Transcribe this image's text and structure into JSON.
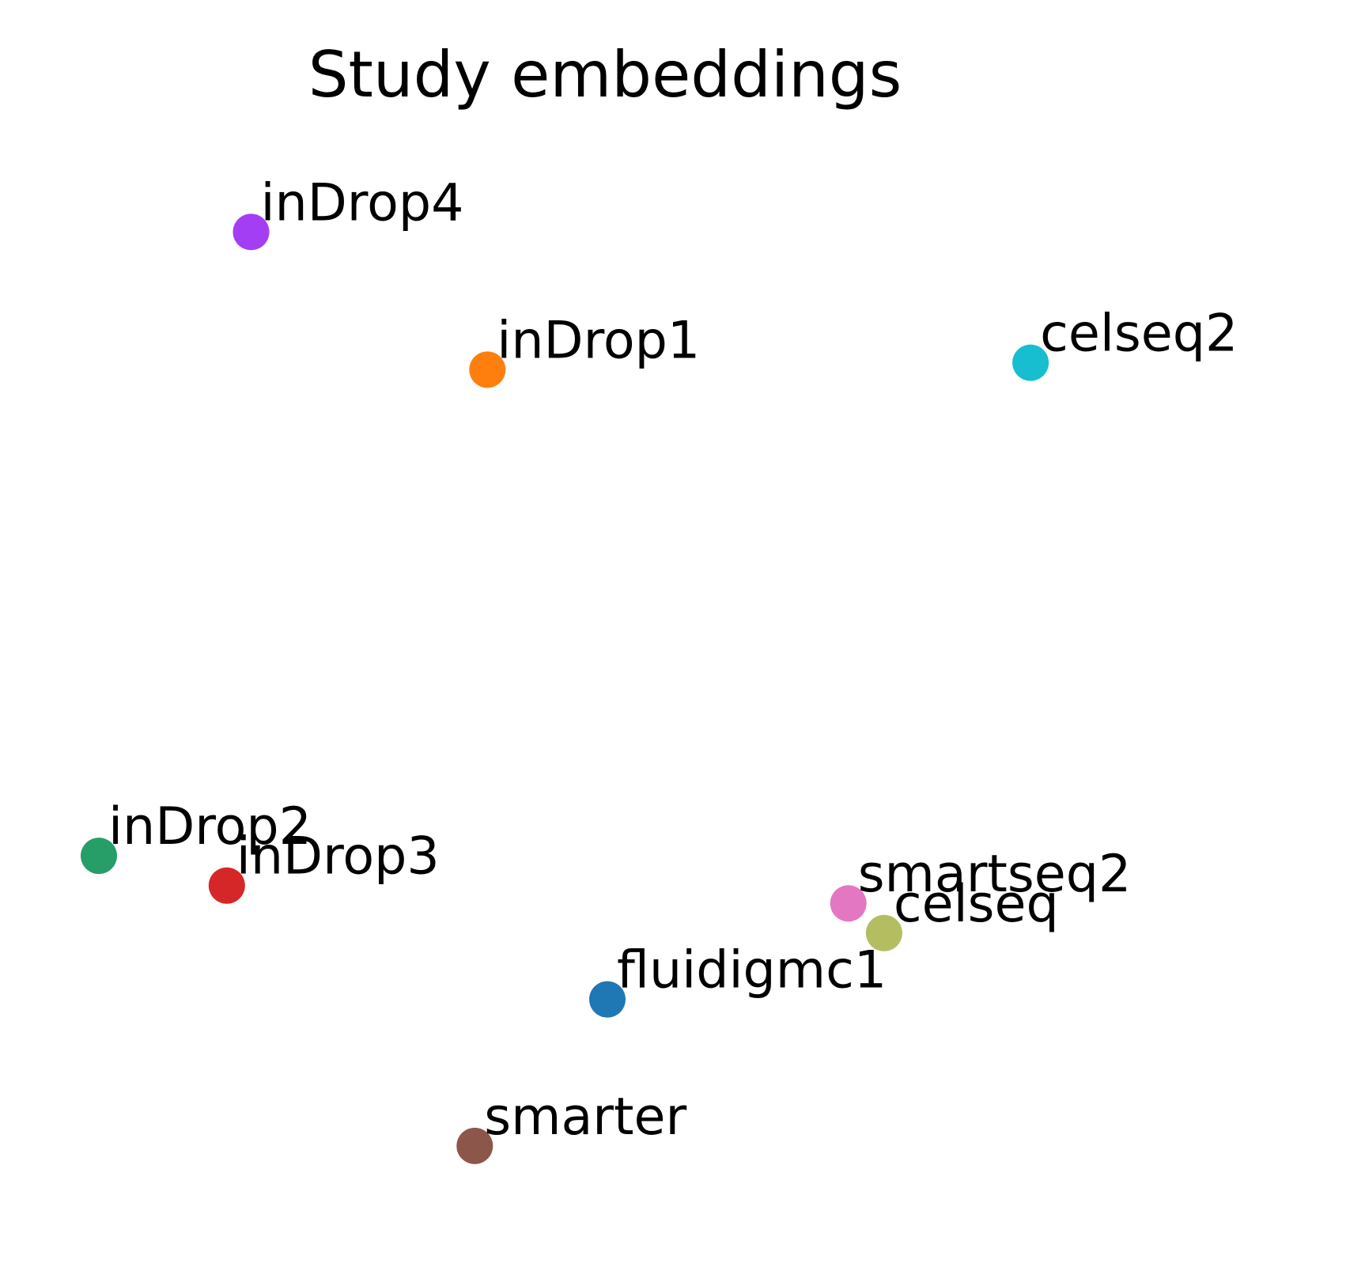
{
  "chart_data": {
    "type": "scatter",
    "title": "Study embeddings",
    "xlabel": "",
    "ylabel": "",
    "axes_visible": false,
    "grid": false,
    "legend": "none",
    "xlim": [
      0,
      1
    ],
    "ylim": [
      0,
      1
    ],
    "points": [
      {
        "label": "inDrop4",
        "x": 0.132,
        "y": 0.955,
        "color": "#a43ef5"
      },
      {
        "label": "inDrop1",
        "x": 0.337,
        "y": 0.816,
        "color": "#ff7f0e"
      },
      {
        "label": "celseq2",
        "x": 0.808,
        "y": 0.823,
        "color": "#17becf"
      },
      {
        "label": "inDrop2",
        "x": 0.0,
        "y": 0.325,
        "color": "#279e68"
      },
      {
        "label": "inDrop3",
        "x": 0.111,
        "y": 0.295,
        "color": "#d62728"
      },
      {
        "label": "smartseq2",
        "x": 0.65,
        "y": 0.277,
        "color": "#e377c2"
      },
      {
        "label": "celseq",
        "x": 0.681,
        "y": 0.247,
        "color": "#b5bd61"
      },
      {
        "label": "fluidigmc1",
        "x": 0.441,
        "y": 0.18,
        "color": "#1f77b4"
      },
      {
        "label": "smarter",
        "x": 0.326,
        "y": 0.032,
        "color": "#8c564b"
      }
    ]
  }
}
